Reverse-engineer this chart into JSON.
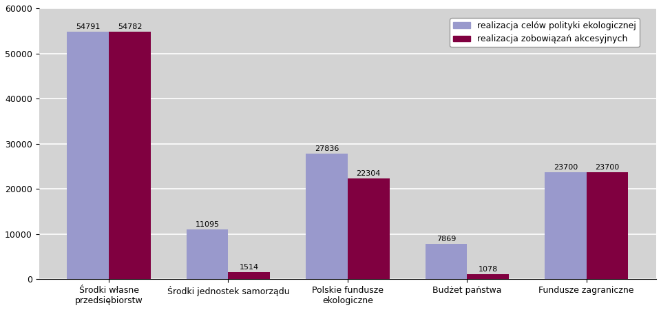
{
  "categories": [
    "Środki własne\nprzedsiębiorstw",
    "Środki jednostek samorządu",
    "Polskie fundusze\nekologiczne",
    "Budżet państwa",
    "Fundusze zagraniczne"
  ],
  "series1_values": [
    54791,
    11095,
    27836,
    7869,
    23700
  ],
  "series2_values": [
    54782,
    1514,
    22304,
    1078,
    23700
  ],
  "series1_label": "realizacja celów polityki ekologicznej",
  "series2_label": "realizacja zobowiązań akcesyjnych",
  "series1_color": "#9999CC",
  "series2_color": "#800040",
  "bar_width": 0.35,
  "ylim": [
    0,
    60000
  ],
  "yticks": [
    0,
    10000,
    20000,
    30000,
    40000,
    50000,
    60000
  ],
  "background_color": "#C0C0C0",
  "plot_bg_color": "#D3D3D3",
  "grid_color": "#FFFFFF",
  "figure_bg": "#FFFFFF",
  "label_fontsize": 9,
  "tick_fontsize": 9,
  "legend_fontsize": 9,
  "value_fontsize": 8
}
